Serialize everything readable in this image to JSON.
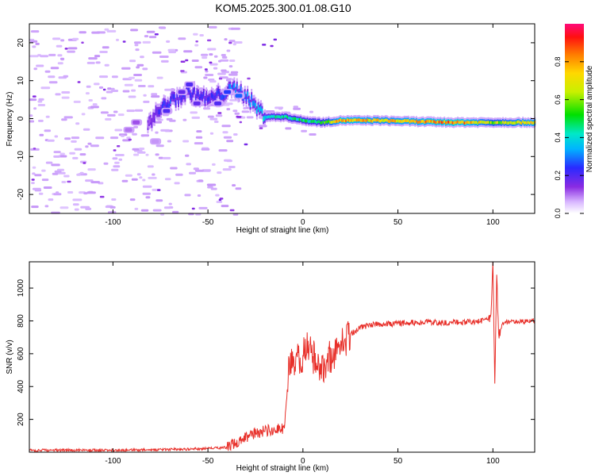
{
  "figure": {
    "title": "KOM5.2025.300.01.08.G10"
  },
  "chart_data": [
    {
      "type": "heatmap",
      "xlabel": "Height of straight line (km)",
      "ylabel": "Frequency (Hz)",
      "xlim": [
        -144,
        122
      ],
      "ylim": [
        -25,
        25
      ],
      "xticks": [
        -100,
        -50,
        0,
        50,
        100
      ],
      "yticks": [
        -20,
        -10,
        0,
        10,
        20
      ],
      "colorbar": {
        "label": "Normalized spectral amplitude",
        "range": [
          0,
          1
        ],
        "ticks": [
          0.0,
          0.2,
          0.4,
          0.6,
          0.8
        ],
        "colormap": "rainbow: white → violet → blue → cyan → green → yellow → orange → red → magenta"
      },
      "ridge": {
        "description_points": [
          {
            "x": -80,
            "y": 0,
            "amp": 0.15
          },
          {
            "x": -72,
            "y": 4,
            "amp": 0.25
          },
          {
            "x": -60,
            "y": 7,
            "amp": 0.22
          },
          {
            "x": -50,
            "y": 5,
            "amp": 0.2
          },
          {
            "x": -36,
            "y": 8,
            "amp": 0.3
          },
          {
            "x": -30,
            "y": 6,
            "amp": 0.3
          },
          {
            "x": -25,
            "y": 3,
            "amp": 0.35
          },
          {
            "x": -20,
            "y": 0.5,
            "amp": 0.4
          },
          {
            "x": -10,
            "y": 0.5,
            "amp": 0.45
          },
          {
            "x": 0,
            "y": -0.5,
            "amp": 0.45
          },
          {
            "x": 10,
            "y": -1,
            "amp": 0.5
          },
          {
            "x": 20,
            "y": -0.5,
            "amp": 0.8
          },
          {
            "x": 40,
            "y": -0.5,
            "amp": 0.7
          },
          {
            "x": 60,
            "y": -0.8,
            "amp": 0.75
          },
          {
            "x": 80,
            "y": -1,
            "amp": 0.85
          },
          {
            "x": 100,
            "y": -1,
            "amp": 0.6
          },
          {
            "x": 122,
            "y": -1,
            "amp": 0.75
          }
        ]
      }
    },
    {
      "type": "line",
      "xlabel": "Height of straight line (km)",
      "ylabel": "SNR (v/v)",
      "xlim": [
        -144,
        122
      ],
      "ylim": [
        0,
        1160
      ],
      "xticks": [
        -100,
        -50,
        0,
        50,
        100
      ],
      "yticks": [
        200,
        400,
        600,
        800,
        1000
      ],
      "series": [
        {
          "color": "#e8302a",
          "x": [
            -144,
            -120,
            -100,
            -80,
            -60,
            -50,
            -40,
            -35,
            -30,
            -25,
            -20,
            -15,
            -10,
            -9,
            -8,
            -7,
            -5,
            -3,
            0,
            2,
            4,
            6,
            8,
            10,
            12,
            14,
            16,
            18,
            20,
            22,
            25,
            30,
            35,
            40,
            50,
            60,
            70,
            80,
            90,
            95,
            99,
            100,
            101,
            102,
            103,
            105,
            110,
            115,
            122
          ],
          "y": [
            12,
            12,
            12,
            15,
            18,
            22,
            30,
            55,
            95,
            115,
            130,
            140,
            145,
            250,
            430,
            520,
            540,
            560,
            580,
            640,
            600,
            580,
            560,
            500,
            560,
            580,
            600,
            620,
            650,
            680,
            720,
            760,
            775,
            780,
            785,
            790,
            790,
            792,
            795,
            800,
            820,
            1160,
            390,
            1100,
            700,
            790,
            795,
            795,
            800
          ]
        }
      ]
    }
  ]
}
